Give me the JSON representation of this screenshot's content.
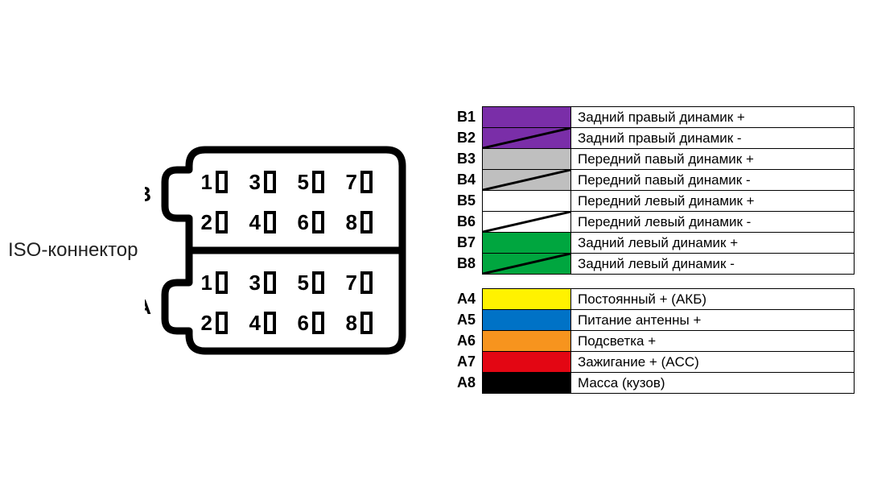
{
  "connector": {
    "label": "ISO-коннектор",
    "section_b_label": "B",
    "section_a_label": "A",
    "outline_color": "#000000",
    "outline_width": 9,
    "pin_numbers_top": [
      "1",
      "3",
      "5",
      "7"
    ],
    "pin_numbers_bottom": [
      "2",
      "4",
      "6",
      "8"
    ],
    "background": "#ffffff",
    "pin_font_size": 26,
    "label_font_size": 24
  },
  "legend": {
    "stripe_color": "#000000",
    "stripe_width": 3,
    "rows_b": [
      {
        "pin": "B1",
        "color": "#7a2ea8",
        "stripe": false,
        "desc": "Задний правый динамик +"
      },
      {
        "pin": "B2",
        "color": "#7a2ea8",
        "stripe": true,
        "desc": "Задний правый динамик -"
      },
      {
        "pin": "B3",
        "color": "#bfbfbf",
        "stripe": false,
        "desc": "Передний павый динамик +"
      },
      {
        "pin": "B4",
        "color": "#bfbfbf",
        "stripe": true,
        "desc": "Передний павый динамик -"
      },
      {
        "pin": "B5",
        "color": "#ffffff",
        "stripe": false,
        "desc": "Передний левый динамик +"
      },
      {
        "pin": "B6",
        "color": "#ffffff",
        "stripe": true,
        "desc": "Передний левый динамик -"
      },
      {
        "pin": "B7",
        "color": "#00a63f",
        "stripe": false,
        "desc": "Задний левый динамик +"
      },
      {
        "pin": "B8",
        "color": "#00a63f",
        "stripe": true,
        "desc": "Задний левый динамик -"
      }
    ],
    "rows_a": [
      {
        "pin": "A4",
        "color": "#fff200",
        "stripe": false,
        "desc": "Постоянный + (АКБ)"
      },
      {
        "pin": "A5",
        "color": "#0072c6",
        "stripe": false,
        "desc": "Питание антенны +"
      },
      {
        "pin": "A6",
        "color": "#f7941e",
        "stripe": false,
        "desc": "Подсветка +"
      },
      {
        "pin": "A7",
        "color": "#e30613",
        "stripe": false,
        "desc": "Зажигание + (ACC)"
      },
      {
        "pin": "A8",
        "color": "#000000",
        "stripe": false,
        "desc": "Масса (кузов)"
      }
    ]
  }
}
